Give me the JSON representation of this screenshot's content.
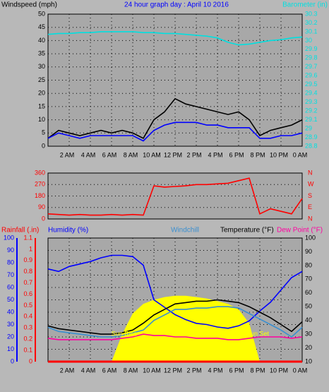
{
  "chart_data": [
    {
      "type": "line",
      "title": "24 hour graph day : April 10 2016",
      "title_color": "#0000ff",
      "y_label": "Windspeed (mph)",
      "y_color": "#000000",
      "y2_label": "Barometer (in)",
      "y2_color": "#00e0e0",
      "x": [
        0,
        1,
        2,
        3,
        4,
        5,
        6,
        7,
        8,
        9,
        10,
        11,
        12,
        13,
        14,
        15,
        16,
        17,
        18,
        19,
        20,
        21,
        22,
        23,
        24
      ],
      "xlim": [
        0,
        24
      ],
      "xticks": [
        {
          "value": 2,
          "label": "2 AM"
        },
        {
          "value": 4,
          "label": "4 AM"
        },
        {
          "value": 6,
          "label": "6 AM"
        },
        {
          "value": 8,
          "label": "8 AM"
        },
        {
          "value": 10,
          "label": "10 AM"
        },
        {
          "value": 12,
          "label": "12 PM"
        },
        {
          "value": 14,
          "label": "2 PM"
        },
        {
          "value": 16,
          "label": "4 PM"
        },
        {
          "value": 18,
          "label": "6 PM"
        },
        {
          "value": 20,
          "label": "8 PM"
        },
        {
          "value": 22,
          "label": "10 PM"
        },
        {
          "value": 24,
          "label": "0 AM"
        }
      ],
      "ylim": [
        0,
        50
      ],
      "yticks": [
        0,
        5,
        10,
        15,
        20,
        25,
        30,
        35,
        40,
        45,
        50
      ],
      "y2lim": [
        28.8,
        30.3
      ],
      "y2ticks": [
        28.8,
        28.9,
        29,
        29.1,
        29.2,
        29.3,
        29.4,
        29.5,
        29.6,
        29.7,
        29.8,
        29.9,
        30,
        30.1,
        30.2,
        30.3
      ],
      "grid": true,
      "series": [
        {
          "color": "#000000",
          "values": [
            3,
            6,
            5,
            4,
            5,
            6,
            5,
            6,
            5,
            3,
            10,
            13,
            18,
            16,
            15,
            14,
            13,
            12,
            13,
            10,
            4,
            6,
            7,
            8,
            10
          ]
        },
        {
          "color": "#0000ff",
          "values": [
            3,
            5,
            4,
            3,
            4,
            4,
            4,
            4,
            4,
            2,
            6,
            8,
            9,
            9,
            9,
            8,
            8,
            7,
            7,
            7,
            3,
            3,
            4,
            4,
            5
          ]
        },
        {
          "color": "#00e0e0",
          "axis": "y2",
          "values": [
            30.07,
            30.08,
            30.08,
            30.09,
            30.09,
            30.1,
            30.1,
            30.1,
            30.1,
            30.09,
            30.09,
            30.08,
            30.08,
            30.07,
            30.06,
            30.05,
            30.03,
            29.98,
            29.95,
            29.96,
            29.98,
            30,
            30.01,
            30.03,
            30.04
          ]
        }
      ]
    },
    {
      "type": "line",
      "y_color": "#ff0000",
      "y2_color": "#ff0000",
      "x": [
        0,
        1,
        2,
        3,
        4,
        5,
        6,
        7,
        8,
        9,
        10,
        11,
        12,
        13,
        14,
        15,
        16,
        17,
        18,
        19,
        20,
        21,
        22,
        23,
        24
      ],
      "xlim": [
        0,
        24
      ],
      "ylim": [
        0,
        360
      ],
      "yticks": [
        0,
        90,
        180,
        270,
        360
      ],
      "y2lim": [
        0,
        360
      ],
      "y2ticks": [
        {
          "value": 0,
          "label": "N"
        },
        {
          "value": 90,
          "label": "E"
        },
        {
          "value": 180,
          "label": "S"
        },
        {
          "value": 270,
          "label": "W"
        },
        {
          "value": 360,
          "label": "N"
        }
      ],
      "grid": true,
      "series": [
        {
          "color": "#ff0000",
          "values": [
            40,
            35,
            30,
            35,
            30,
            30,
            35,
            30,
            35,
            30,
            260,
            250,
            255,
            260,
            270,
            270,
            275,
            280,
            300,
            320,
            40,
            80,
            60,
            40,
            160
          ]
        }
      ]
    },
    {
      "type": "line",
      "y_color": "#0000ff",
      "y2_color": "#000000",
      "y3_color": "#ff0000",
      "x": [
        0,
        1,
        2,
        3,
        4,
        5,
        6,
        7,
        8,
        9,
        10,
        11,
        12,
        13,
        14,
        15,
        16,
        17,
        18,
        19,
        20,
        21,
        22,
        23,
        24
      ],
      "xlim": [
        0,
        24
      ],
      "xticks": [
        {
          "value": 2,
          "label": "2 AM"
        },
        {
          "value": 4,
          "label": "4 AM"
        },
        {
          "value": 6,
          "label": "6 AM"
        },
        {
          "value": 8,
          "label": "8 AM"
        },
        {
          "value": 10,
          "label": "10 AM"
        },
        {
          "value": 12,
          "label": "12 PM"
        },
        {
          "value": 14,
          "label": "2 PM"
        },
        {
          "value": 16,
          "label": "4 PM"
        },
        {
          "value": 18,
          "label": "6 PM"
        },
        {
          "value": 20,
          "label": "8 PM"
        },
        {
          "value": 22,
          "label": "10 PM"
        },
        {
          "value": 24,
          "label": "0 AM"
        }
      ],
      "ylim": [
        0,
        100
      ],
      "yticks": [
        0,
        10,
        20,
        30,
        40,
        50,
        60,
        70,
        80,
        90,
        100
      ],
      "y2lim": [
        10,
        100
      ],
      "y2ticks": [
        10,
        20,
        30,
        40,
        50,
        60,
        70,
        80,
        90,
        100
      ],
      "y3lim": [
        0,
        1.1
      ],
      "y3ticks": [
        0,
        0.1,
        0.2,
        0.3,
        0.4,
        0.5,
        0.6,
        0.7,
        0.8,
        0.9,
        1,
        1.1
      ],
      "grid": true,
      "annotations": [
        {
          "text": "Sun Rise",
          "x": 7.2,
          "y": 30
        },
        {
          "text": "Sun Set",
          "x": 19.8,
          "y": 30
        }
      ],
      "series": [
        {
          "kind": "area",
          "color": "#ffff00",
          "axis": "y2",
          "values": [
            10,
            10,
            10,
            10,
            10,
            10,
            10,
            30,
            45,
            52,
            55,
            57,
            58,
            58,
            57,
            56,
            54,
            52,
            48,
            38,
            10,
            10,
            10,
            10,
            10
          ]
        },
        {
          "name": "Rainfall (.in)",
          "color": "#ff0000",
          "axis": "y3",
          "values": [
            0,
            0,
            0,
            0,
            0,
            0,
            0,
            0,
            0,
            0,
            0,
            0,
            0,
            0,
            0,
            0,
            0,
            0,
            0,
            0,
            0,
            0,
            0,
            0,
            0
          ]
        },
        {
          "name": "Humidity (%)",
          "color": "#0000ff",
          "values": [
            75,
            73,
            77,
            79,
            81,
            84,
            86,
            86,
            85,
            78,
            50,
            44,
            38,
            34,
            31,
            30,
            28,
            27,
            29,
            33,
            41,
            48,
            58,
            68,
            73
          ]
        },
        {
          "name": "Windchill",
          "color": "#3a8fd0",
          "axis": "y2",
          "values": [
            35,
            32,
            31,
            30,
            29,
            28,
            28,
            29,
            31,
            33,
            40,
            44,
            48,
            48,
            49,
            49,
            50,
            50,
            49,
            45,
            41,
            37,
            33,
            28,
            35
          ]
        },
        {
          "name": "Temperature (°F)",
          "color": "#000000",
          "axis": "y2",
          "values": [
            36,
            34,
            33,
            32,
            31,
            30,
            30,
            31,
            33,
            38,
            44,
            48,
            52,
            53,
            54,
            54,
            55,
            54,
            53,
            50,
            46,
            42,
            37,
            32,
            39
          ]
        },
        {
          "name": "Dew Point (°F)",
          "color": "#ff00a0",
          "axis": "y2",
          "values": [
            27,
            26,
            26,
            26,
            26,
            26,
            26,
            27,
            28,
            30,
            29,
            29,
            28,
            28,
            27,
            27,
            27,
            26,
            26,
            27,
            28,
            28,
            28,
            27,
            28
          ]
        }
      ]
    }
  ]
}
